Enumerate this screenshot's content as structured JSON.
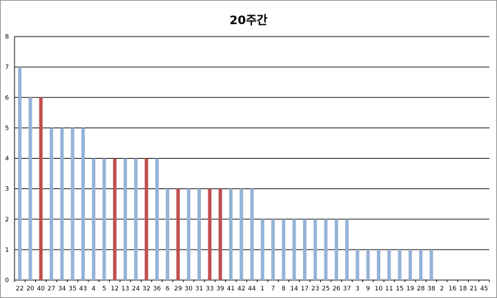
{
  "chart_data": {
    "type": "bar",
    "title": "20주간",
    "xlabel": "",
    "ylabel": "",
    "ylim": [
      0,
      8
    ],
    "yticks": [
      0,
      1,
      2,
      3,
      4,
      5,
      6,
      7,
      8
    ],
    "grid": true,
    "legend": "none",
    "colors": {
      "default": "#95b3d7",
      "highlight": "#c0504d",
      "grid": "#000000"
    },
    "categories": [
      "22",
      "20",
      "40",
      "27",
      "34",
      "35",
      "43",
      "4",
      "5",
      "12",
      "13",
      "24",
      "32",
      "36",
      "6",
      "29",
      "30",
      "31",
      "33",
      "39",
      "41",
      "42",
      "44",
      "1",
      "7",
      "8",
      "14",
      "17",
      "23",
      "25",
      "26",
      "37",
      "3",
      "9",
      "10",
      "11",
      "15",
      "19",
      "28",
      "38",
      "2",
      "16",
      "18",
      "21",
      "45"
    ],
    "values": [
      7,
      6,
      6,
      5,
      5,
      5,
      5,
      4,
      4,
      4,
      4,
      4,
      4,
      4,
      3,
      3,
      3,
      3,
      3,
      3,
      3,
      3,
      3,
      2,
      2,
      2,
      2,
      2,
      2,
      2,
      2,
      2,
      1,
      1,
      1,
      1,
      1,
      1,
      1,
      1,
      0,
      0,
      0,
      0,
      0
    ],
    "highlighted": [
      "40",
      "12",
      "32",
      "29",
      "33",
      "39"
    ]
  }
}
